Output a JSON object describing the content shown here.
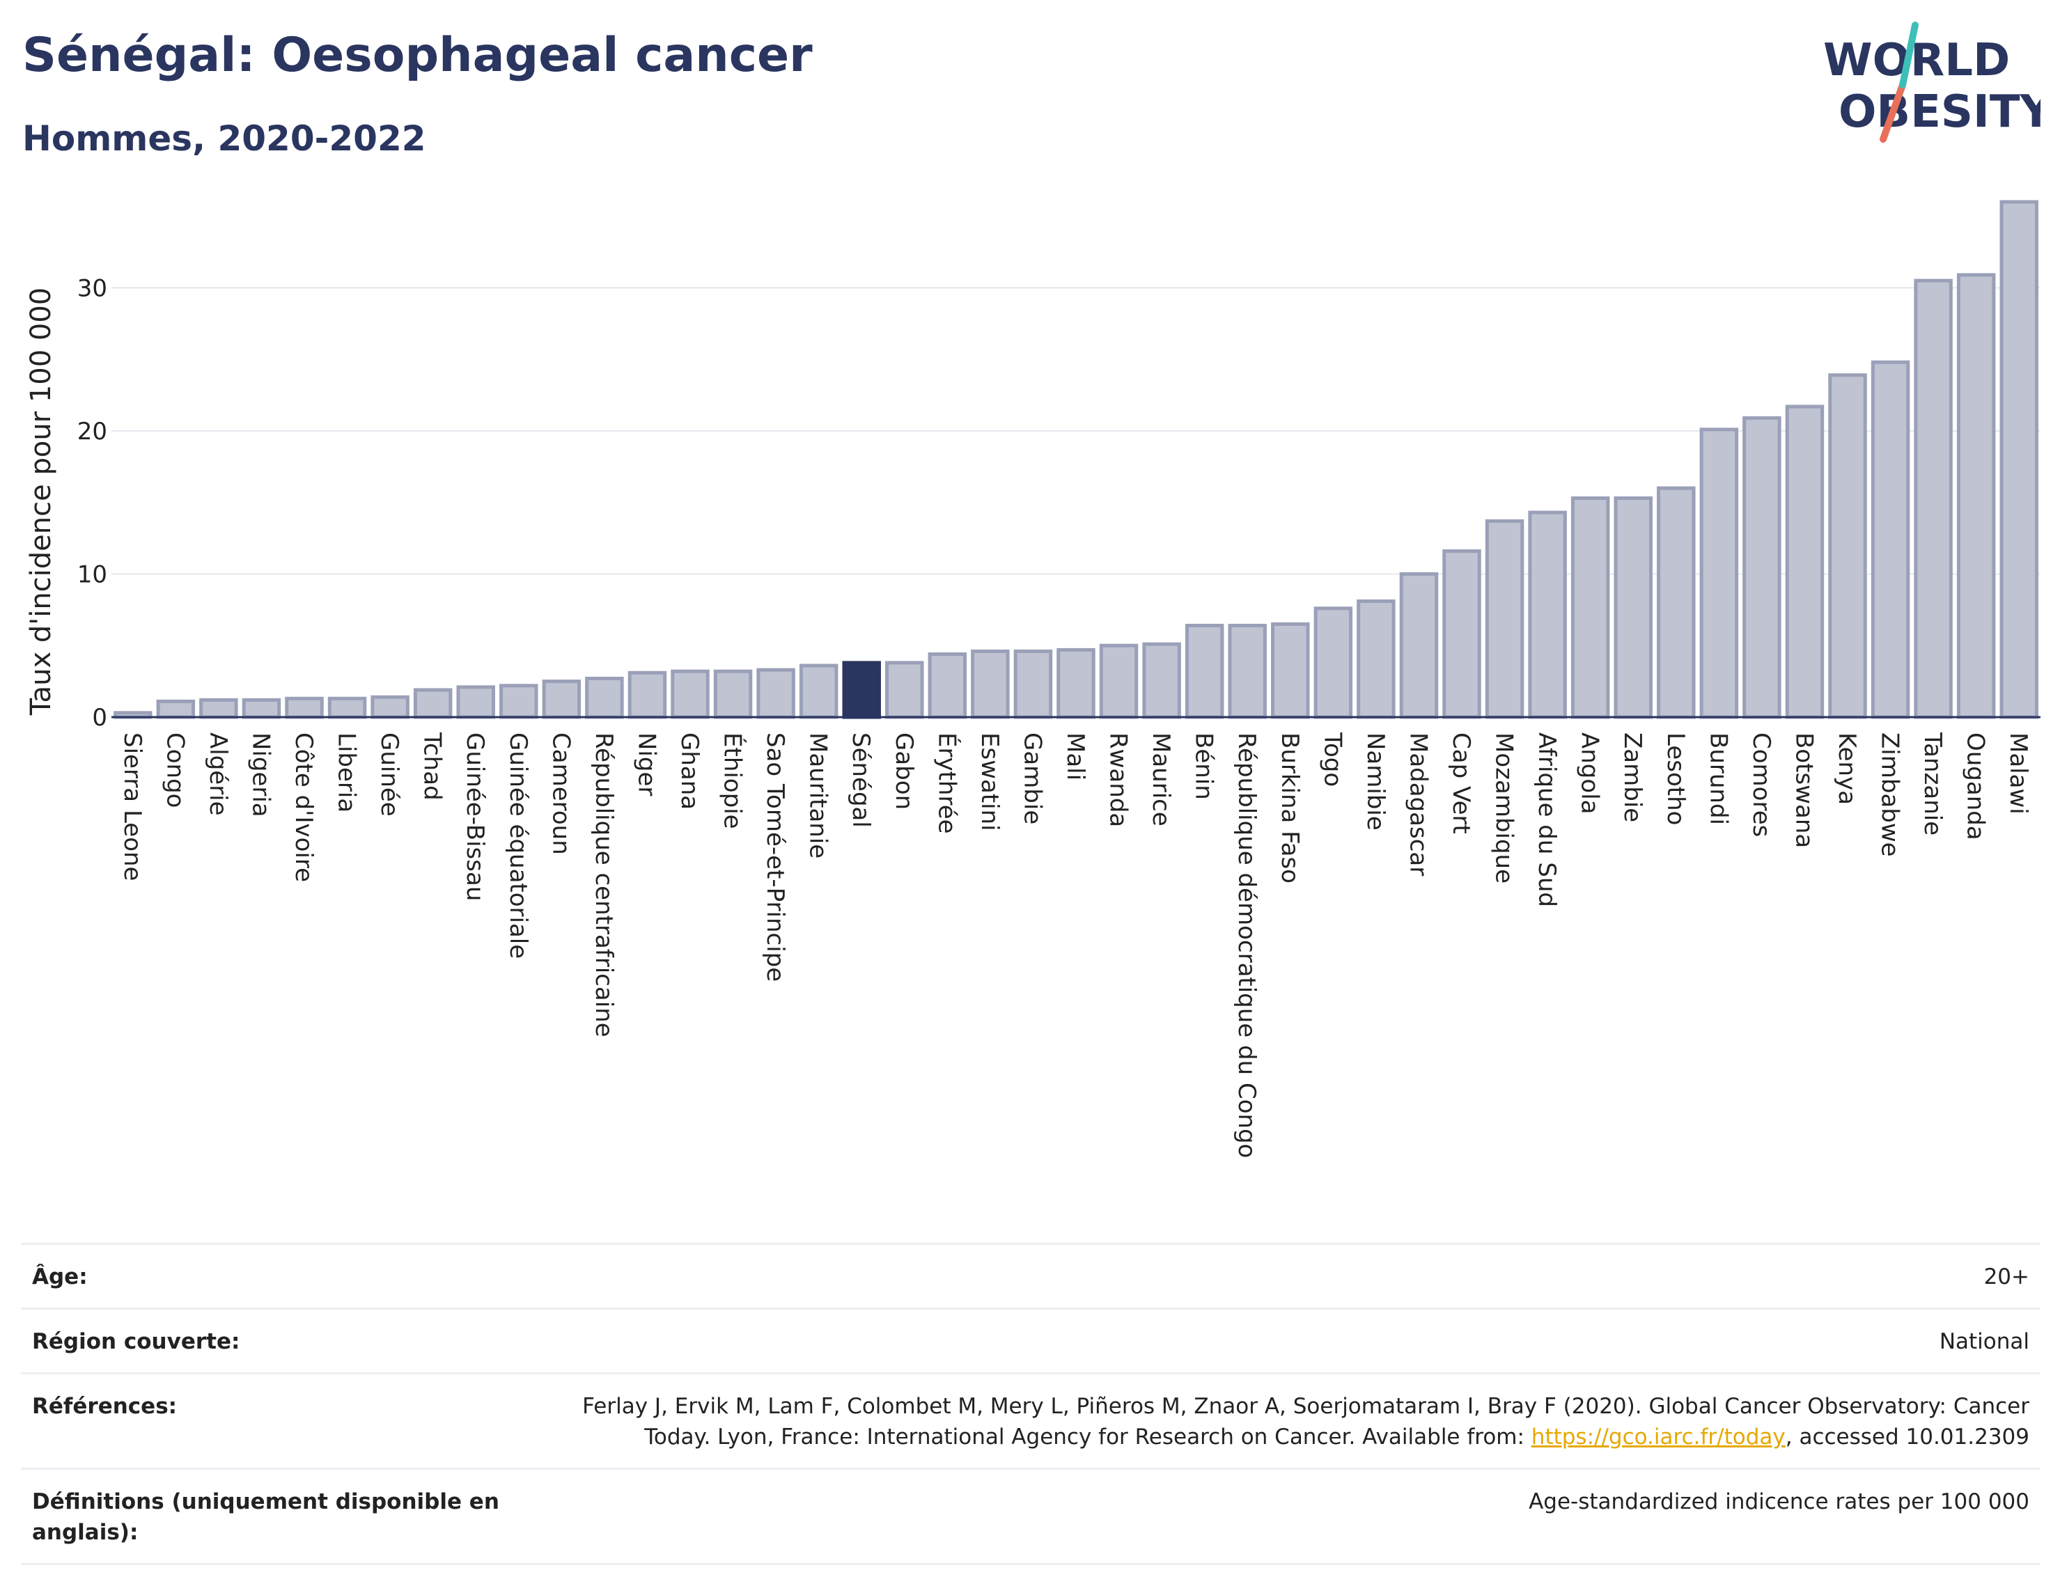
{
  "header": {
    "title": "Sénégal: Oesophageal cancer",
    "subtitle": "Hommes, 2020-2022"
  },
  "logo": {
    "line1": "WORLD",
    "line2": "OBESITY"
  },
  "colors": {
    "bar": "#bfc3d2",
    "bar_stroke": "#9aa0b8",
    "highlight": "#2a3560",
    "text": "#2a3560"
  },
  "chart_data": {
    "type": "bar",
    "ylabel": "Taux d'incidence pour 100 000",
    "ylim": [
      0,
      36
    ],
    "yticks": [
      0,
      10,
      20,
      30
    ],
    "grid": true,
    "highlight": "Sénégal",
    "categories": [
      "Sierra Leone",
      "Congo",
      "Algérie",
      "Nigeria",
      "Côte d'Ivoire",
      "Liberia",
      "Guinée",
      "Tchad",
      "Guinée-Bissau",
      "Guinée équatoriale",
      "Cameroun",
      "République centrafricaine",
      "Niger",
      "Ghana",
      "Éthiopie",
      "Sao Tomé-et-Principe",
      "Mauritanie",
      "Sénégal",
      "Gabon",
      "Érythrée",
      "Eswatini",
      "Gambie",
      "Mali",
      "Rwanda",
      "Maurice",
      "Bénin",
      "République démocratique du Congo",
      "Burkina Faso",
      "Togo",
      "Namibie",
      "Madagascar",
      "Cap Vert",
      "Mozambique",
      "Afrique du Sud",
      "Angola",
      "Zambie",
      "Lesotho",
      "Burundi",
      "Comores",
      "Botswana",
      "Kenya",
      "Zimbabwe",
      "Tanzanie",
      "Ouganda",
      "Malawi"
    ],
    "values": [
      0.3,
      1.1,
      1.2,
      1.2,
      1.3,
      1.3,
      1.4,
      1.9,
      2.1,
      2.2,
      2.5,
      2.7,
      3.1,
      3.2,
      3.2,
      3.3,
      3.6,
      3.8,
      3.8,
      4.4,
      4.6,
      4.6,
      4.7,
      5.0,
      5.1,
      6.4,
      6.4,
      6.5,
      7.6,
      8.1,
      10.0,
      11.6,
      13.7,
      14.3,
      15.3,
      15.3,
      16.0,
      20.1,
      20.9,
      21.7,
      23.9,
      24.8,
      30.5,
      30.9,
      36.0
    ]
  },
  "meta": {
    "age_label": "Âge:",
    "age_value": "20+",
    "region_label": "Région couverte:",
    "region_value": "National",
    "ref_label": "Références:",
    "ref_text_1": "Ferlay J, Ervik M, Lam F, Colombet M, Mery L, Piñeros M, Znaor A, Soerjomataram I, Bray F (2020). Global Cancer Observatory: Cancer Today. Lyon, France: International Agency for Research on Cancer. Available from: ",
    "ref_link": "https://gco.iarc.fr/today",
    "ref_text_2": ", accessed 10.01.2309",
    "def_label": "Définitions (uniquement disponible en anglais):",
    "def_value": "Age-standardized indicence rates per 100 000"
  }
}
